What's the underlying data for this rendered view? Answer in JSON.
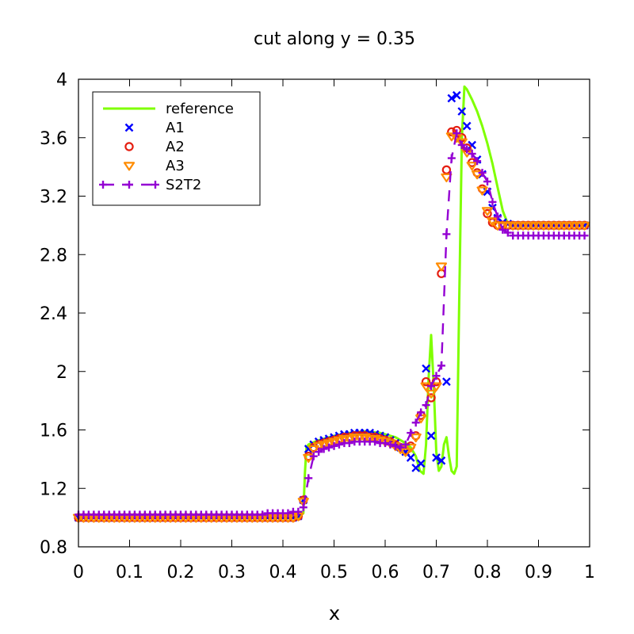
{
  "chart_data": {
    "type": "line",
    "title": "cut along y = 0.35",
    "xlabel": "x",
    "ylabel": "",
    "xlim": [
      0,
      1
    ],
    "ylim": [
      0.8,
      4.0
    ],
    "xticks": [
      0,
      0.1,
      0.2,
      0.3,
      0.4,
      0.5,
      0.6,
      0.7,
      0.8,
      0.9,
      1
    ],
    "xtick_labels": [
      "0",
      "0.1",
      "0.2",
      "0.3",
      "0.4",
      "0.5",
      "0.6",
      "0.7",
      "0.8",
      "0.9",
      "1"
    ],
    "yticks": [
      0.8,
      1.2,
      1.6,
      2.0,
      2.4,
      2.8,
      3.2,
      3.6,
      4.0
    ],
    "ytick_labels": [
      "0.8",
      "1.2",
      "1.6",
      "2",
      "2.4",
      "2.8",
      "3.2",
      "3.6",
      "4"
    ],
    "grid": false,
    "legend_position": "top-left",
    "series": [
      {
        "name": "reference",
        "style": "line",
        "color": "#7fff00",
        "x": [
          0,
          0.43,
          0.44,
          0.443,
          0.446,
          0.45,
          0.47,
          0.5,
          0.53,
          0.56,
          0.59,
          0.62,
          0.64,
          0.65,
          0.66,
          0.668,
          0.675,
          0.68,
          0.685,
          0.69,
          0.695,
          0.7,
          0.705,
          0.71,
          0.715,
          0.72,
          0.725,
          0.73,
          0.735,
          0.74,
          0.745,
          0.75,
          0.755,
          0.76,
          0.77,
          0.78,
          0.79,
          0.8,
          0.81,
          0.82,
          0.83,
          0.84,
          0.86,
          0.9,
          1.0
        ],
        "y": [
          1.0,
          1.0,
          1.03,
          1.3,
          1.48,
          1.5,
          1.53,
          1.56,
          1.58,
          1.59,
          1.58,
          1.55,
          1.51,
          1.48,
          1.42,
          1.32,
          1.3,
          1.5,
          1.95,
          2.25,
          1.9,
          1.45,
          1.32,
          1.35,
          1.5,
          1.55,
          1.42,
          1.32,
          1.3,
          1.35,
          2.5,
          3.6,
          3.95,
          3.93,
          3.86,
          3.78,
          3.68,
          3.56,
          3.42,
          3.26,
          3.1,
          3.01,
          3.0,
          3.0,
          3.0
        ]
      },
      {
        "name": "A1",
        "style": "x",
        "color": "#0000ff",
        "x": [
          0,
          0.01,
          0.02,
          0.03,
          0.04,
          0.05,
          0.06,
          0.07,
          0.08,
          0.09,
          0.1,
          0.11,
          0.12,
          0.13,
          0.14,
          0.15,
          0.16,
          0.17,
          0.18,
          0.19,
          0.2,
          0.21,
          0.22,
          0.23,
          0.24,
          0.25,
          0.26,
          0.27,
          0.28,
          0.29,
          0.3,
          0.31,
          0.32,
          0.33,
          0.34,
          0.35,
          0.36,
          0.37,
          0.38,
          0.39,
          0.4,
          0.41,
          0.42,
          0.43,
          0.44,
          0.45,
          0.46,
          0.47,
          0.48,
          0.49,
          0.5,
          0.51,
          0.52,
          0.53,
          0.54,
          0.55,
          0.56,
          0.57,
          0.58,
          0.59,
          0.6,
          0.61,
          0.62,
          0.63,
          0.64,
          0.65,
          0.66,
          0.67,
          0.68,
          0.69,
          0.7,
          0.71,
          0.72,
          0.73,
          0.74,
          0.75,
          0.76,
          0.77,
          0.78,
          0.79,
          0.8,
          0.81,
          0.82,
          0.83,
          0.84,
          0.85,
          0.86,
          0.87,
          0.88,
          0.89,
          0.9,
          0.91,
          0.92,
          0.93,
          0.94,
          0.95,
          0.96,
          0.97,
          0.98,
          0.99
        ],
        "y": [
          1.0,
          1.0,
          1.0,
          1.0,
          1.0,
          1.0,
          1.0,
          1.0,
          1.0,
          1.0,
          1.0,
          1.0,
          1.0,
          1.0,
          1.0,
          1.0,
          1.0,
          1.0,
          1.0,
          1.0,
          1.0,
          1.0,
          1.0,
          1.0,
          1.0,
          1.0,
          1.0,
          1.0,
          1.0,
          1.0,
          1.0,
          1.0,
          1.0,
          1.0,
          1.0,
          1.0,
          1.0,
          1.0,
          1.0,
          1.0,
          1.0,
          1.0,
          1.0,
          1.01,
          1.12,
          1.47,
          1.5,
          1.52,
          1.53,
          1.54,
          1.55,
          1.56,
          1.57,
          1.57,
          1.58,
          1.58,
          1.58,
          1.58,
          1.57,
          1.56,
          1.55,
          1.53,
          1.51,
          1.48,
          1.45,
          1.41,
          1.34,
          1.37,
          2.02,
          1.56,
          1.41,
          1.39,
          1.93,
          3.87,
          3.89,
          3.78,
          3.68,
          3.55,
          3.45,
          3.35,
          3.23,
          3.12,
          3.05,
          3.02,
          3.01,
          3.0,
          3.0,
          3.0,
          3.0,
          3.0,
          3.0,
          3.0,
          3.0,
          3.0,
          3.0,
          3.0,
          3.0,
          3.0,
          3.0,
          3.0
        ]
      },
      {
        "name": "A2",
        "style": "circle",
        "color": "#e51e10",
        "x": [
          0,
          0.01,
          0.02,
          0.03,
          0.04,
          0.05,
          0.06,
          0.07,
          0.08,
          0.09,
          0.1,
          0.11,
          0.12,
          0.13,
          0.14,
          0.15,
          0.16,
          0.17,
          0.18,
          0.19,
          0.2,
          0.21,
          0.22,
          0.23,
          0.24,
          0.25,
          0.26,
          0.27,
          0.28,
          0.29,
          0.3,
          0.31,
          0.32,
          0.33,
          0.34,
          0.35,
          0.36,
          0.37,
          0.38,
          0.39,
          0.4,
          0.41,
          0.42,
          0.43,
          0.44,
          0.45,
          0.46,
          0.47,
          0.48,
          0.49,
          0.5,
          0.51,
          0.52,
          0.53,
          0.54,
          0.55,
          0.56,
          0.57,
          0.58,
          0.59,
          0.6,
          0.61,
          0.62,
          0.63,
          0.64,
          0.65,
          0.66,
          0.67,
          0.68,
          0.69,
          0.7,
          0.71,
          0.72,
          0.73,
          0.74,
          0.75,
          0.76,
          0.77,
          0.78,
          0.79,
          0.8,
          0.81,
          0.82,
          0.83,
          0.84,
          0.85,
          0.86,
          0.87,
          0.88,
          0.89,
          0.9,
          0.91,
          0.92,
          0.93,
          0.94,
          0.95,
          0.96,
          0.97,
          0.98,
          0.99
        ],
        "y": [
          1.0,
          1.0,
          1.0,
          1.0,
          1.0,
          1.0,
          1.0,
          1.0,
          1.0,
          1.0,
          1.0,
          1.0,
          1.0,
          1.0,
          1.0,
          1.0,
          1.0,
          1.0,
          1.0,
          1.0,
          1.0,
          1.0,
          1.0,
          1.0,
          1.0,
          1.0,
          1.0,
          1.0,
          1.0,
          1.0,
          1.0,
          1.0,
          1.0,
          1.0,
          1.0,
          1.0,
          1.0,
          1.0,
          1.0,
          1.0,
          1.0,
          1.0,
          1.0,
          1.01,
          1.12,
          1.42,
          1.48,
          1.5,
          1.51,
          1.52,
          1.53,
          1.54,
          1.55,
          1.55,
          1.56,
          1.56,
          1.56,
          1.55,
          1.55,
          1.54,
          1.53,
          1.52,
          1.5,
          1.48,
          1.46,
          1.49,
          1.56,
          1.7,
          1.93,
          1.82,
          1.93,
          2.67,
          3.38,
          3.64,
          3.65,
          3.6,
          3.53,
          3.43,
          3.36,
          3.25,
          3.08,
          3.02,
          3.0,
          3.0,
          3.0,
          3.0,
          3.0,
          3.0,
          3.0,
          3.0,
          3.0,
          3.0,
          3.0,
          3.0,
          3.0,
          3.0,
          3.0,
          3.0,
          3.0,
          3.0
        ]
      },
      {
        "name": "A3",
        "style": "triangle",
        "color": "#ff8c00",
        "x": [
          0,
          0.01,
          0.02,
          0.03,
          0.04,
          0.05,
          0.06,
          0.07,
          0.08,
          0.09,
          0.1,
          0.11,
          0.12,
          0.13,
          0.14,
          0.15,
          0.16,
          0.17,
          0.18,
          0.19,
          0.2,
          0.21,
          0.22,
          0.23,
          0.24,
          0.25,
          0.26,
          0.27,
          0.28,
          0.29,
          0.3,
          0.31,
          0.32,
          0.33,
          0.34,
          0.35,
          0.36,
          0.37,
          0.38,
          0.39,
          0.4,
          0.41,
          0.42,
          0.43,
          0.44,
          0.45,
          0.46,
          0.47,
          0.48,
          0.49,
          0.5,
          0.51,
          0.52,
          0.53,
          0.54,
          0.55,
          0.56,
          0.57,
          0.58,
          0.59,
          0.6,
          0.61,
          0.62,
          0.63,
          0.64,
          0.65,
          0.66,
          0.67,
          0.68,
          0.69,
          0.7,
          0.71,
          0.72,
          0.73,
          0.74,
          0.75,
          0.76,
          0.77,
          0.78,
          0.79,
          0.8,
          0.81,
          0.82,
          0.83,
          0.84,
          0.85,
          0.86,
          0.87,
          0.88,
          0.89,
          0.9,
          0.91,
          0.92,
          0.93,
          0.94,
          0.95,
          0.96,
          0.97,
          0.98,
          0.99
        ],
        "y": [
          1.0,
          1.0,
          1.0,
          1.0,
          1.0,
          1.0,
          1.0,
          1.0,
          1.0,
          1.0,
          1.0,
          1.0,
          1.0,
          1.0,
          1.0,
          1.0,
          1.0,
          1.0,
          1.0,
          1.0,
          1.0,
          1.0,
          1.0,
          1.0,
          1.0,
          1.0,
          1.0,
          1.0,
          1.0,
          1.0,
          1.0,
          1.0,
          1.0,
          1.0,
          1.0,
          1.0,
          1.0,
          1.0,
          1.0,
          1.0,
          1.0,
          1.0,
          1.0,
          1.01,
          1.11,
          1.41,
          1.47,
          1.49,
          1.5,
          1.51,
          1.52,
          1.53,
          1.54,
          1.54,
          1.55,
          1.55,
          1.55,
          1.54,
          1.54,
          1.53,
          1.52,
          1.51,
          1.49,
          1.47,
          1.45,
          1.48,
          1.55,
          1.68,
          1.9,
          1.85,
          1.9,
          2.72,
          3.33,
          3.61,
          3.6,
          3.57,
          3.5,
          3.41,
          3.35,
          3.24,
          3.1,
          3.03,
          3.0,
          3.0,
          3.0,
          3.0,
          3.0,
          3.0,
          3.0,
          3.0,
          3.0,
          3.0,
          3.0,
          3.0,
          3.0,
          3.0,
          3.0,
          3.0,
          3.0,
          3.0
        ]
      },
      {
        "name": "S2T2",
        "style": "dashed-plus",
        "color": "#9400d3",
        "x": [
          0,
          0.01,
          0.02,
          0.03,
          0.04,
          0.05,
          0.06,
          0.07,
          0.08,
          0.09,
          0.1,
          0.11,
          0.12,
          0.13,
          0.14,
          0.15,
          0.16,
          0.17,
          0.18,
          0.19,
          0.2,
          0.21,
          0.22,
          0.23,
          0.24,
          0.25,
          0.26,
          0.27,
          0.28,
          0.29,
          0.3,
          0.31,
          0.32,
          0.33,
          0.34,
          0.35,
          0.36,
          0.37,
          0.38,
          0.39,
          0.4,
          0.41,
          0.42,
          0.43,
          0.44,
          0.45,
          0.46,
          0.47,
          0.48,
          0.49,
          0.5,
          0.51,
          0.52,
          0.53,
          0.54,
          0.55,
          0.56,
          0.57,
          0.58,
          0.59,
          0.6,
          0.61,
          0.62,
          0.63,
          0.64,
          0.65,
          0.66,
          0.67,
          0.68,
          0.69,
          0.7,
          0.71,
          0.72,
          0.73,
          0.74,
          0.75,
          0.76,
          0.77,
          0.78,
          0.79,
          0.8,
          0.81,
          0.82,
          0.83,
          0.84,
          0.85,
          0.86,
          0.87,
          0.88,
          0.89,
          0.9,
          0.91,
          0.92,
          0.93,
          0.94,
          0.95,
          0.96,
          0.97,
          0.98,
          0.99
        ],
        "y": [
          1.02,
          1.02,
          1.02,
          1.02,
          1.02,
          1.02,
          1.02,
          1.02,
          1.02,
          1.02,
          1.02,
          1.02,
          1.02,
          1.02,
          1.02,
          1.02,
          1.02,
          1.02,
          1.02,
          1.02,
          1.02,
          1.02,
          1.02,
          1.02,
          1.02,
          1.02,
          1.02,
          1.02,
          1.02,
          1.02,
          1.02,
          1.02,
          1.02,
          1.02,
          1.02,
          1.02,
          1.02,
          1.03,
          1.03,
          1.03,
          1.03,
          1.03,
          1.04,
          1.04,
          1.07,
          1.27,
          1.42,
          1.45,
          1.47,
          1.48,
          1.49,
          1.5,
          1.51,
          1.51,
          1.52,
          1.52,
          1.52,
          1.52,
          1.52,
          1.51,
          1.51,
          1.5,
          1.49,
          1.48,
          1.5,
          1.58,
          1.65,
          1.72,
          1.77,
          1.9,
          1.97,
          2.04,
          2.94,
          3.46,
          3.63,
          3.55,
          3.52,
          3.49,
          3.44,
          3.36,
          3.3,
          3.16,
          3.06,
          2.97,
          2.95,
          2.93,
          2.93,
          2.93,
          2.93,
          2.93,
          2.93,
          2.93,
          2.93,
          2.93,
          2.93,
          2.93,
          2.93,
          2.93,
          2.93,
          2.93
        ]
      }
    ]
  }
}
